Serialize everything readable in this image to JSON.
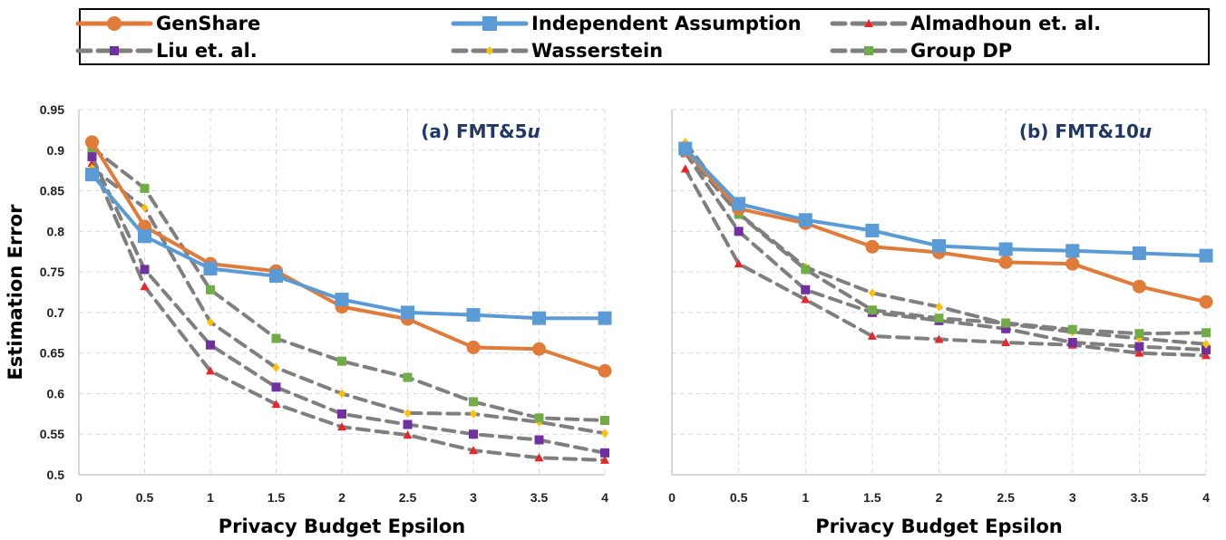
{
  "legend": {
    "entries": [
      {
        "name": "GenShare",
        "color": "#e07b39",
        "marker": "circle",
        "dashed": false
      },
      {
        "name": "Independent Assumption",
        "color": "#5b9bd5",
        "marker": "square",
        "dashed": false
      },
      {
        "name": "Almadhoun et. al.",
        "color": "#e8262a",
        "marker": "triangle",
        "dashed": true
      },
      {
        "name": "Liu et. al.",
        "color": "#7030a0",
        "marker": "square",
        "dashed": true
      },
      {
        "name": "Wasserstein",
        "color": "#ffc000",
        "marker": "diamond",
        "dashed": true
      },
      {
        "name": "Group DP",
        "color": "#70ad47",
        "marker": "square",
        "dashed": true
      }
    ]
  },
  "chart_data": [
    {
      "type": "line",
      "title": "(a) FMT&5u",
      "title_parts": [
        "(a) FMT&5",
        "u"
      ],
      "xlabel": "Privacy Budget Epsilon",
      "ylabel": "Estimation Error",
      "x": [
        0.1,
        0.5,
        1,
        1.5,
        2,
        2.5,
        3,
        3.5,
        4
      ],
      "xlim": [
        0,
        4
      ],
      "ylim": [
        0.5,
        0.95
      ],
      "xticks": [
        "0",
        "0.5",
        "1",
        "1.5",
        "2",
        "2.5",
        "3",
        "3.5",
        "4"
      ],
      "yticks": [
        "0.5",
        "0.55",
        "0.6",
        "0.65",
        "0.7",
        "0.75",
        "0.8",
        "0.85",
        "0.9",
        "0.95"
      ],
      "grid": true,
      "series": [
        {
          "name": "GenShare",
          "values": [
            0.91,
            0.806,
            0.76,
            0.751,
            0.707,
            0.692,
            0.657,
            0.655,
            0.628
          ]
        },
        {
          "name": "Independent Assumption",
          "values": [
            0.87,
            0.794,
            0.754,
            0.745,
            0.716,
            0.7,
            0.697,
            0.693,
            0.693
          ]
        },
        {
          "name": "Almadhoun et. al.",
          "values": [
            0.884,
            0.732,
            0.628,
            0.587,
            0.559,
            0.549,
            0.53,
            0.521,
            0.518
          ]
        },
        {
          "name": "Liu et. al.",
          "values": [
            0.892,
            0.753,
            0.66,
            0.608,
            0.575,
            0.562,
            0.55,
            0.543,
            0.527
          ]
        },
        {
          "name": "Wasserstein",
          "values": [
            0.878,
            0.829,
            0.688,
            0.632,
            0.6,
            0.576,
            0.575,
            0.565,
            0.551
          ]
        },
        {
          "name": "Group DP",
          "values": [
            0.903,
            0.853,
            0.728,
            0.668,
            0.64,
            0.62,
            0.59,
            0.57,
            0.567
          ]
        }
      ]
    },
    {
      "type": "line",
      "title": "(b) FMT&10u",
      "title_parts": [
        "(b) FMT&10",
        "u"
      ],
      "xlabel": "Privacy Budget Epsilon",
      "ylabel": "",
      "x": [
        0.1,
        0.5,
        1,
        1.5,
        2,
        2.5,
        3,
        3.5,
        4
      ],
      "xlim": [
        0,
        4
      ],
      "ylim": [
        0.5,
        0.95
      ],
      "xticks": [
        "0",
        "0.5",
        "1",
        "1.5",
        "2",
        "2.5",
        "3",
        "3.5",
        "4"
      ],
      "yticks": [],
      "grid": true,
      "series": [
        {
          "name": "GenShare",
          "values": [
            0.9,
            0.828,
            0.81,
            0.781,
            0.774,
            0.762,
            0.76,
            0.732,
            0.713
          ]
        },
        {
          "name": "Independent Assumption",
          "values": [
            0.902,
            0.834,
            0.814,
            0.801,
            0.782,
            0.778,
            0.776,
            0.773,
            0.77
          ]
        },
        {
          "name": "Almadhoun et. al.",
          "values": [
            0.877,
            0.76,
            0.716,
            0.671,
            0.667,
            0.663,
            0.66,
            0.65,
            0.647
          ]
        },
        {
          "name": "Liu et. al.",
          "values": [
            0.897,
            0.8,
            0.728,
            0.7,
            0.69,
            0.68,
            0.663,
            0.658,
            0.654
          ]
        },
        {
          "name": "Wasserstein",
          "values": [
            0.91,
            0.822,
            0.756,
            0.724,
            0.707,
            0.686,
            0.676,
            0.668,
            0.661
          ]
        },
        {
          "name": "Group DP",
          "values": [
            0.898,
            0.821,
            0.753,
            0.703,
            0.693,
            0.687,
            0.679,
            0.674,
            0.675
          ]
        }
      ]
    }
  ]
}
